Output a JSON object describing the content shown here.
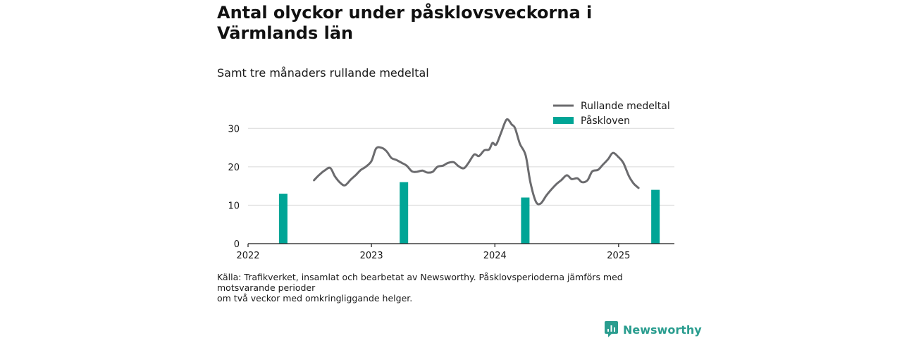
{
  "title": "Antal olyckor under påsklovsveckorna i Värmlands län",
  "subtitle": "Samt tre månaders rullande medeltal",
  "source_lines": [
    "Källa: Trafikverket, insamlat och bearbetat av Newsworthy. Påsklovsperioderna jämförs med motsvarande perioder",
    "om två veckor med omkringliggande helger."
  ],
  "brand": "Newsworthy",
  "colors": {
    "line": "#6b6b6e",
    "bars": "#00a596",
    "brand": "#2a9d8f",
    "grid": "#d9d9d9"
  },
  "chart_data": {
    "type": "bar+line",
    "xlabel": "",
    "ylabel": "",
    "x_ticks": [
      "2022",
      "2023",
      "2024",
      "2025"
    ],
    "y_ticks": [
      0,
      10,
      20,
      30
    ],
    "ylim": [
      0,
      35
    ],
    "xlim": [
      "2022-01-01",
      "2025-06-15"
    ],
    "grid": true,
    "legend_position": "top-right",
    "series": [
      {
        "name": "Rullande medeltal",
        "type": "line",
        "points": [
          [
            "2022-07-15",
            16.5
          ],
          [
            "2022-08-01",
            18.0
          ],
          [
            "2022-08-15",
            19.0
          ],
          [
            "2022-09-01",
            19.7
          ],
          [
            "2022-09-15",
            17.5
          ],
          [
            "2022-10-01",
            15.8
          ],
          [
            "2022-10-15",
            15.2
          ],
          [
            "2022-11-01",
            16.7
          ],
          [
            "2022-11-15",
            17.8
          ],
          [
            "2022-12-01",
            19.2
          ],
          [
            "2022-12-15",
            20.0
          ],
          [
            "2023-01-01",
            21.5
          ],
          [
            "2023-01-15",
            24.8
          ],
          [
            "2023-02-01",
            24.9
          ],
          [
            "2023-02-15",
            24.0
          ],
          [
            "2023-03-01",
            22.3
          ],
          [
            "2023-03-15",
            21.8
          ],
          [
            "2023-04-01",
            21.0
          ],
          [
            "2023-04-15",
            20.3
          ],
          [
            "2023-05-01",
            18.8
          ],
          [
            "2023-05-15",
            18.7
          ],
          [
            "2023-06-01",
            19.0
          ],
          [
            "2023-06-15",
            18.5
          ],
          [
            "2023-07-01",
            18.7
          ],
          [
            "2023-07-15",
            20.0
          ],
          [
            "2023-08-01",
            20.3
          ],
          [
            "2023-08-15",
            21.0
          ],
          [
            "2023-09-01",
            21.2
          ],
          [
            "2023-09-15",
            20.2
          ],
          [
            "2023-10-01",
            19.6
          ],
          [
            "2023-10-15",
            21.0
          ],
          [
            "2023-11-01",
            23.2
          ],
          [
            "2023-11-15",
            22.8
          ],
          [
            "2023-12-01",
            24.3
          ],
          [
            "2023-12-15",
            24.5
          ],
          [
            "2023-12-25",
            26.2
          ],
          [
            "2024-01-05",
            25.8
          ],
          [
            "2024-01-20",
            29.0
          ],
          [
            "2024-02-05",
            32.3
          ],
          [
            "2024-02-20",
            31.0
          ],
          [
            "2024-03-01",
            30.0
          ],
          [
            "2024-03-15",
            26.0
          ],
          [
            "2024-04-01",
            23.0
          ],
          [
            "2024-04-15",
            16.0
          ],
          [
            "2024-05-01",
            11.0
          ],
          [
            "2024-05-15",
            10.4
          ],
          [
            "2024-06-01",
            12.5
          ],
          [
            "2024-06-15",
            14.0
          ],
          [
            "2024-07-01",
            15.5
          ],
          [
            "2024-07-15",
            16.5
          ],
          [
            "2024-08-01",
            17.8
          ],
          [
            "2024-08-15",
            16.8
          ],
          [
            "2024-09-01",
            17.0
          ],
          [
            "2024-09-15",
            16.0
          ],
          [
            "2024-10-01",
            16.5
          ],
          [
            "2024-10-15",
            18.8
          ],
          [
            "2024-11-01",
            19.2
          ],
          [
            "2024-11-15",
            20.5
          ],
          [
            "2024-12-01",
            22.0
          ],
          [
            "2024-12-15",
            23.6
          ],
          [
            "2025-01-01",
            22.5
          ],
          [
            "2025-01-15",
            21.0
          ],
          [
            "2025-02-01",
            17.5
          ],
          [
            "2025-02-15",
            15.6
          ],
          [
            "2025-03-01",
            14.5
          ]
        ]
      },
      {
        "name": "Påskloven",
        "type": "bar",
        "points": [
          [
            "2022-04-15",
            13
          ],
          [
            "2023-04-07",
            16
          ],
          [
            "2024-03-31",
            12
          ],
          [
            "2025-04-20",
            14
          ]
        ]
      }
    ]
  }
}
